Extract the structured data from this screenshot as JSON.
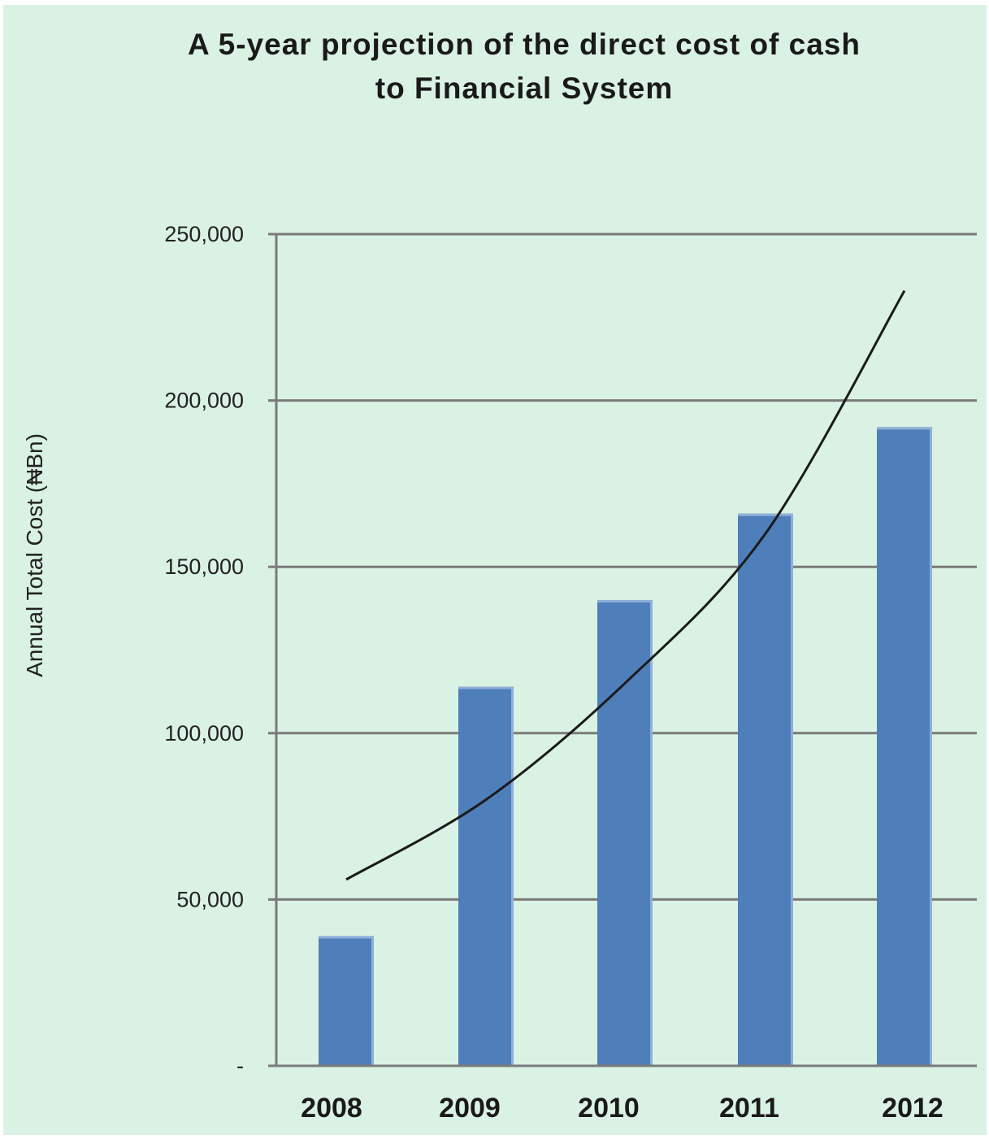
{
  "chart_data": {
    "type": "bar",
    "title_lines": [
      "A 5-year projection of the direct cost of cash",
      "to Financial System"
    ],
    "xlabel": "",
    "ylabel": "Annual Total Cost (₦Bn)",
    "categories": [
      "2008",
      "2009",
      "2010",
      "2011",
      "2012"
    ],
    "values": [
      39000,
      114000,
      140000,
      166000,
      192000
    ],
    "ylim": [
      0,
      250000
    ],
    "yticks": [
      {
        "value": 0,
        "label": "-"
      },
      {
        "value": 50000,
        "label": "50,000"
      },
      {
        "value": 100000,
        "label": "100,000"
      },
      {
        "value": 150000,
        "label": "150,000"
      },
      {
        "value": 200000,
        "label": "200,000"
      },
      {
        "value": 250000,
        "label": "250,000"
      }
    ],
    "grid": true,
    "trendline": {
      "type": "exponential",
      "points": [
        {
          "x": "2008",
          "y": 56000
        },
        {
          "x": "2009",
          "y": 80000
        },
        {
          "x": "2010",
          "y": 115000
        },
        {
          "x": "2011",
          "y": 160000
        },
        {
          "x": "2012",
          "y": 233000
        }
      ]
    },
    "colors": {
      "background": "#daf2e3",
      "bar": "#4f7fba",
      "bar_highlight": "#8fb0d8",
      "grid": "#7a7a7a",
      "trendline": "#1a1a1a"
    }
  }
}
